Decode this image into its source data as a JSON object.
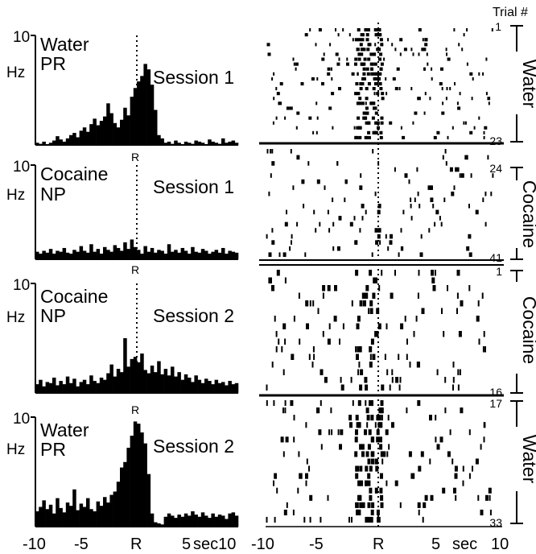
{
  "chart_data": [
    {
      "type": "bar",
      "panel": "histogram",
      "y_max_label": "10",
      "y_unit": "Hz",
      "drug": "Water",
      "response": "PR",
      "session": "Session 1",
      "r_label": "",
      "values": [
        0.2,
        0.1,
        0.3,
        0,
        0.2,
        0.4,
        0.8,
        0.5,
        0.3,
        0.6,
        0.9,
        1.1,
        0.7,
        1.3,
        1.6,
        1.2,
        1.9,
        2.4,
        1.8,
        2.2,
        2.6,
        3.8,
        2.9,
        2.0,
        1.6,
        2.3,
        3.4,
        2.7,
        4.4,
        5.2,
        5.8,
        6.3,
        7.4,
        6.9,
        5.5,
        3.2,
        0.9,
        0.6,
        0.2,
        0.3,
        0.1,
        0.4,
        0.2,
        0,
        0.3,
        0.2,
        0.1,
        0.4,
        0.3,
        0.2,
        0,
        0.5,
        0.3,
        0.2,
        0.1,
        0.6,
        0.2,
        0.3,
        0.4,
        0.2
      ],
      "xlim": [
        -10,
        10
      ],
      "ylim": [
        0,
        10
      ]
    },
    {
      "type": "bar",
      "panel": "histogram",
      "y_max_label": "10",
      "y_unit": "Hz",
      "drug": "Cocaine",
      "response": "NP",
      "session": "Session 1",
      "r_label": "R",
      "values": [
        0.8,
        0.6,
        0.9,
        0.7,
        1.1,
        0.6,
        0.9,
        0.8,
        1.2,
        0.7,
        0.6,
        1.0,
        0.8,
        1.4,
        0.9,
        0.7,
        1.6,
        0.8,
        1.1,
        0.6,
        1.3,
        1.0,
        0.8,
        1.5,
        1.2,
        0.9,
        1.8,
        1.1,
        2.1,
        1.3,
        1.0,
        0.6,
        1.4,
        0.8,
        1.2,
        0.7,
        1.0,
        0.9,
        0.6,
        1.6,
        0.8,
        1.0,
        0.7,
        1.2,
        0.9,
        0.6,
        1.3,
        0.8,
        0.7,
        1.1,
        0.9,
        0.6,
        0.8,
        1.0,
        0.7,
        1.2,
        0.6,
        0.9,
        0.8,
        0.7
      ],
      "xlim": [
        -10,
        10
      ],
      "ylim": [
        0,
        10
      ]
    },
    {
      "type": "bar",
      "panel": "histogram",
      "y_max_label": "10",
      "y_unit": "Hz",
      "drug": "Cocaine",
      "response": "NP",
      "session": "Session 2",
      "r_label": "R",
      "values": [
        0.8,
        1.2,
        0.6,
        1.0,
        0.9,
        1.4,
        0.7,
        1.1,
        0.8,
        1.5,
        0.9,
        1.3,
        0.6,
        1.0,
        1.2,
        0.8,
        1.6,
        1.1,
        0.9,
        1.4,
        1.2,
        1.8,
        2.6,
        1.5,
        2.2,
        1.9,
        5.0,
        2.4,
        3.1,
        3.3,
        2.8,
        3.6,
        2.1,
        1.8,
        2.5,
        1.9,
        2.9,
        1.7,
        2.2,
        1.6,
        2.4,
        1.5,
        1.9,
        1.2,
        1.7,
        1.4,
        1.0,
        1.6,
        1.2,
        0.9,
        1.3,
        1.1,
        0.8,
        1.2,
        0.9,
        1.0,
        0.7,
        1.1,
        0.8,
        0.9
      ],
      "xlim": [
        -10,
        10
      ],
      "ylim": [
        0,
        10
      ]
    },
    {
      "type": "bar",
      "panel": "histogram",
      "y_max_label": "10",
      "y_unit": "Hz",
      "drug": "Water",
      "response": "PR",
      "session": "Session 2",
      "r_label": "R",
      "values": [
        1.4,
        1.8,
        2.4,
        1.6,
        2.0,
        1.2,
        2.6,
        1.7,
        1.3,
        2.2,
        1.9,
        3.4,
        1.5,
        2.1,
        1.8,
        2.6,
        1.6,
        1.4,
        2.3,
        1.9,
        2.7,
        2.2,
        2.9,
        3.2,
        4.1,
        5.4,
        5.9,
        7.2,
        8.3,
        9.6,
        9.4,
        8.6,
        7.6,
        4.8,
        1.2,
        0.4,
        0.3,
        0.2,
        0.9,
        1.2,
        1.0,
        0.8,
        1.1,
        0.9,
        1.2,
        1.0,
        1.4,
        1.1,
        0.9,
        1.3,
        1.0,
        0.8,
        1.2,
        0.9,
        1.1,
        1.0,
        0.7,
        1.2,
        1.3,
        1.0
      ],
      "xlim": [
        -10,
        10
      ],
      "ylim": [
        0,
        10
      ]
    },
    {
      "type": "scatter",
      "panel": "raster",
      "x_tick_labels": [
        "-10",
        "-5",
        "R",
        "5",
        "sec",
        "10"
      ],
      "left_x_tick_labels": [
        "-10",
        "-5",
        "R",
        "5",
        "sec10"
      ],
      "trial_header": "Trial #",
      "blocks": [
        {
          "name": "Water",
          "first_trial": "1",
          "last_trial": "23",
          "rows": 23,
          "density": 0.9,
          "peak": 4.5
        },
        {
          "name": "Cocaine",
          "first_trial": "24",
          "last_trial": "41",
          "rows": 18,
          "density": 0.55,
          "peak": 0.4
        },
        {
          "name": "Cocaine",
          "first_trial": "1",
          "last_trial": "16",
          "rows": 16,
          "density": 0.65,
          "peak": 1.4
        },
        {
          "name": "Water",
          "first_trial": "17",
          "last_trial": "33",
          "rows": 17,
          "density": 0.9,
          "peak": 4.0
        }
      ],
      "xlim": [
        -10,
        10
      ]
    }
  ]
}
